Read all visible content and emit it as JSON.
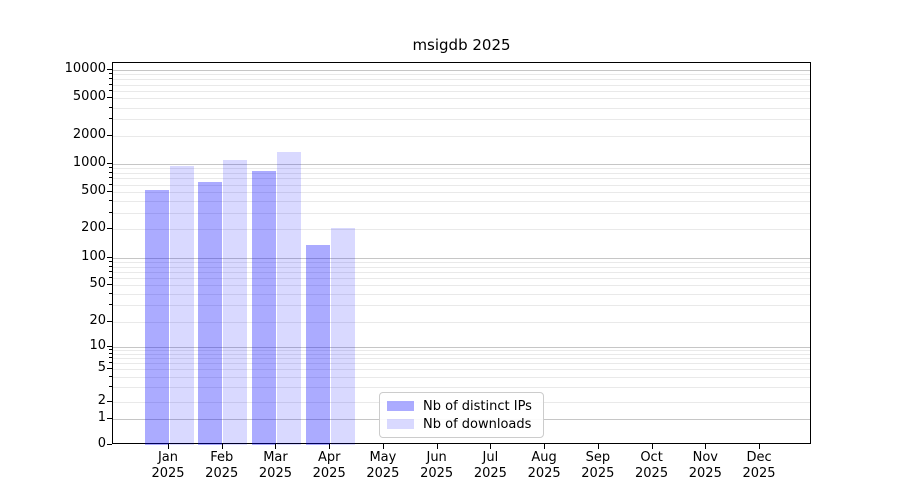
{
  "chart_data": {
    "type": "bar",
    "title": "msigdb 2025",
    "categories": [
      "Jan 2025",
      "Feb 2025",
      "Mar 2025",
      "Apr 2025",
      "May 2025",
      "Jun 2025",
      "Jul 2025",
      "Aug 2025",
      "Sep 2025",
      "Oct 2025",
      "Nov 2025",
      "Dec 2025"
    ],
    "series": [
      {
        "name": "Nb of distinct IPs",
        "color": "rgba(0,0,255,0.33)",
        "flat_hex": "#aaaaff",
        "values": [
          525,
          645,
          840,
          135,
          0,
          0,
          0,
          0,
          0,
          0,
          0,
          0
        ]
      },
      {
        "name": "Nb of downloads",
        "color": "rgba(0,0,255,0.15)",
        "flat_hex": "#d9d9ff",
        "values": [
          950,
          1090,
          1340,
          205,
          0,
          0,
          0,
          0,
          0,
          0,
          0,
          0
        ]
      }
    ],
    "xlabel": "",
    "ylabel": "",
    "yaxis": {
      "scale": "symlog",
      "tick_values": [
        0,
        1,
        2,
        5,
        10,
        20,
        50,
        100,
        200,
        500,
        1000,
        2000,
        5000,
        10000
      ],
      "tick_labels": [
        "0",
        "1",
        "2",
        "5",
        "10",
        "20",
        "50",
        "100",
        "200",
        "500",
        "1000",
        "2000",
        "5000",
        "10000"
      ],
      "ylim": [
        0,
        12000
      ]
    },
    "grid": {
      "enabled": true,
      "major_color": "#c6c6c6",
      "minor_color": "#e9e9e9"
    },
    "legend": {
      "position": "inside-bottom-center",
      "frame": true
    }
  }
}
